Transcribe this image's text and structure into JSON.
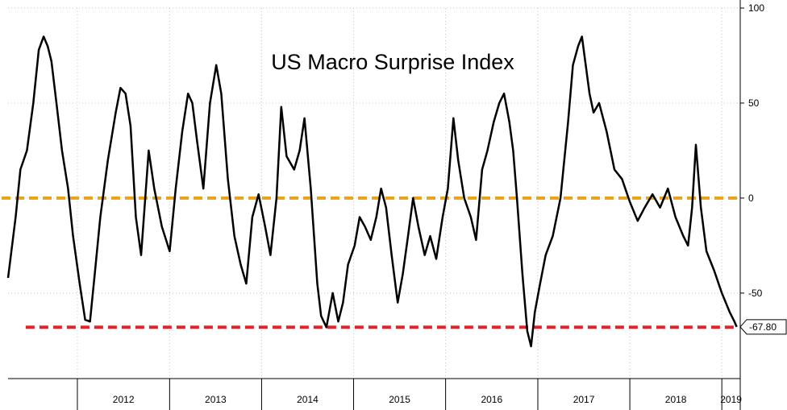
{
  "chart_data": {
    "type": "line",
    "title": "US Macro Surprise Index",
    "xlabel": "",
    "ylabel": "",
    "x_range": [
      "2011-04-01",
      "2019-03-15"
    ],
    "ylim": [
      -95,
      100
    ],
    "y_ticks": [
      100,
      50,
      0,
      -50
    ],
    "y_tick_labels": [
      "100",
      "50",
      "0",
      "-50"
    ],
    "x_year_labels": [
      "2012",
      "2013",
      "2014",
      "2015",
      "2016",
      "2017",
      "2018",
      "2019"
    ],
    "grid": true,
    "y_axis_position": "right",
    "last_value": -67.8,
    "last_value_label": "-67.80",
    "reference_lines": [
      {
        "y": 0,
        "color": "#e6a31e",
        "style": "dashed"
      },
      {
        "y": -68,
        "color": "#e8202a",
        "style": "dashed"
      }
    ],
    "series": [
      {
        "color": "#000000",
        "points": [
          [
            "2011-04-01",
            -42
          ],
          [
            "2011-05-01",
            -10
          ],
          [
            "2011-05-20",
            15
          ],
          [
            "2011-06-15",
            25
          ],
          [
            "2011-07-10",
            50
          ],
          [
            "2011-08-01",
            78
          ],
          [
            "2011-08-20",
            85
          ],
          [
            "2011-09-05",
            80
          ],
          [
            "2011-09-20",
            72
          ],
          [
            "2011-10-10",
            50
          ],
          [
            "2011-11-01",
            25
          ],
          [
            "2011-11-25",
            5
          ],
          [
            "2011-12-15",
            -20
          ],
          [
            "2012-01-10",
            -45
          ],
          [
            "2012-02-01",
            -64
          ],
          [
            "2012-02-20",
            -65
          ],
          [
            "2012-03-10",
            -40
          ],
          [
            "2012-04-01",
            -10
          ],
          [
            "2012-05-01",
            20
          ],
          [
            "2012-06-01",
            45
          ],
          [
            "2012-06-20",
            58
          ],
          [
            "2012-07-10",
            55
          ],
          [
            "2012-07-30",
            38
          ],
          [
            "2012-08-20",
            -10
          ],
          [
            "2012-09-10",
            -30
          ],
          [
            "2012-10-10",
            25
          ],
          [
            "2012-11-01",
            5
          ],
          [
            "2012-12-01",
            -15
          ],
          [
            "2013-01-01",
            -28
          ],
          [
            "2013-01-25",
            5
          ],
          [
            "2013-02-20",
            35
          ],
          [
            "2013-03-15",
            55
          ],
          [
            "2013-04-01",
            50
          ],
          [
            "2013-04-20",
            30
          ],
          [
            "2013-05-15",
            5
          ],
          [
            "2013-06-10",
            50
          ],
          [
            "2013-07-05",
            70
          ],
          [
            "2013-07-25",
            55
          ],
          [
            "2013-08-20",
            10
          ],
          [
            "2013-09-15",
            -20
          ],
          [
            "2013-10-10",
            -35
          ],
          [
            "2013-11-01",
            -45
          ],
          [
            "2013-11-25",
            -10
          ],
          [
            "2013-12-20",
            2
          ],
          [
            "2014-01-15",
            -15
          ],
          [
            "2014-02-05",
            -30
          ],
          [
            "2014-03-01",
            0
          ],
          [
            "2014-03-20",
            48
          ],
          [
            "2014-04-10",
            22
          ],
          [
            "2014-05-10",
            15
          ],
          [
            "2014-06-01",
            25
          ],
          [
            "2014-06-20",
            42
          ],
          [
            "2014-07-15",
            5
          ],
          [
            "2014-08-10",
            -45
          ],
          [
            "2014-08-25",
            -62
          ],
          [
            "2014-09-15",
            -68
          ],
          [
            "2014-10-10",
            -50
          ],
          [
            "2014-11-01",
            -65
          ],
          [
            "2014-11-20",
            -55
          ],
          [
            "2014-12-10",
            -35
          ],
          [
            "2015-01-05",
            -25
          ],
          [
            "2015-01-25",
            -10
          ],
          [
            "2015-02-15",
            -15
          ],
          [
            "2015-03-10",
            -22
          ],
          [
            "2015-04-01",
            -10
          ],
          [
            "2015-04-20",
            5
          ],
          [
            "2015-05-10",
            -5
          ],
          [
            "2015-06-01",
            -30
          ],
          [
            "2015-06-25",
            -55
          ],
          [
            "2015-07-15",
            -40
          ],
          [
            "2015-08-05",
            -20
          ],
          [
            "2015-08-25",
            0
          ],
          [
            "2015-09-15",
            -15
          ],
          [
            "2015-10-10",
            -30
          ],
          [
            "2015-11-01",
            -20
          ],
          [
            "2015-11-25",
            -32
          ],
          [
            "2015-12-20",
            -10
          ],
          [
            "2016-01-10",
            5
          ],
          [
            "2016-02-01",
            42
          ],
          [
            "2016-02-20",
            20
          ],
          [
            "2016-03-15",
            0
          ],
          [
            "2016-04-10",
            -10
          ],
          [
            "2016-05-01",
            -22
          ],
          [
            "2016-05-25",
            15
          ],
          [
            "2016-06-15",
            25
          ],
          [
            "2016-07-10",
            40
          ],
          [
            "2016-08-01",
            50
          ],
          [
            "2016-08-20",
            55
          ],
          [
            "2016-09-10",
            40
          ],
          [
            "2016-09-25",
            25
          ],
          [
            "2016-10-10",
            0
          ],
          [
            "2016-11-01",
            -40
          ],
          [
            "2016-11-20",
            -70
          ],
          [
            "2016-12-05",
            -78
          ],
          [
            "2016-12-20",
            -60
          ],
          [
            "2017-01-10",
            -45
          ],
          [
            "2017-02-01",
            -30
          ],
          [
            "2017-03-01",
            -20
          ],
          [
            "2017-04-01",
            0
          ],
          [
            "2017-05-01",
            40
          ],
          [
            "2017-05-20",
            70
          ],
          [
            "2017-06-10",
            80
          ],
          [
            "2017-06-25",
            85
          ],
          [
            "2017-07-10",
            70
          ],
          [
            "2017-07-25",
            55
          ],
          [
            "2017-08-10",
            45
          ],
          [
            "2017-09-01",
            50
          ],
          [
            "2017-10-01",
            35
          ],
          [
            "2017-11-01",
            15
          ],
          [
            "2017-12-01",
            10
          ],
          [
            "2018-01-01",
            -2
          ],
          [
            "2018-02-01",
            -12
          ],
          [
            "2018-03-01",
            -5
          ],
          [
            "2018-04-01",
            2
          ],
          [
            "2018-05-01",
            -5
          ],
          [
            "2018-06-01",
            5
          ],
          [
            "2018-07-01",
            -10
          ],
          [
            "2018-08-01",
            -20
          ],
          [
            "2018-08-20",
            -25
          ],
          [
            "2018-09-05",
            -5
          ],
          [
            "2018-09-20",
            28
          ],
          [
            "2018-10-10",
            -5
          ],
          [
            "2018-11-01",
            -28
          ],
          [
            "2018-12-01",
            -38
          ],
          [
            "2019-01-01",
            -50
          ],
          [
            "2019-02-01",
            -60
          ],
          [
            "2019-02-20",
            -65
          ],
          [
            "2019-03-01",
            -67.8
          ]
        ]
      }
    ]
  }
}
